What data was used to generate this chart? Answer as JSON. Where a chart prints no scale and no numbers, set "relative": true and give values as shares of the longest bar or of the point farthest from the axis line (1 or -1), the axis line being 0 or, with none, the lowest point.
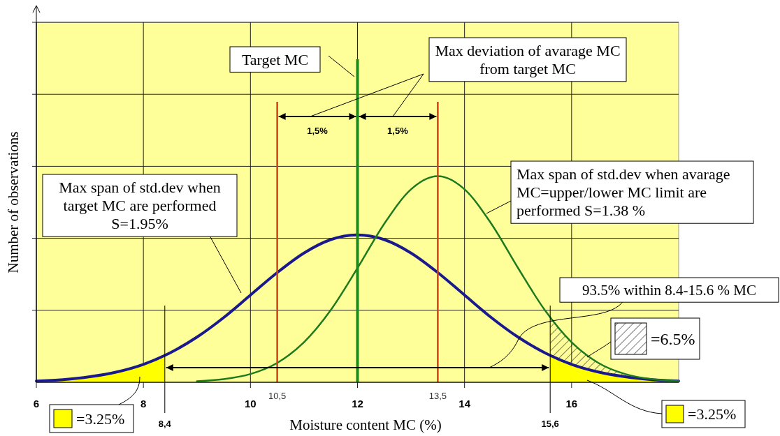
{
  "chart_data": {
    "type": "line",
    "relative": true,
    "xlabel": "Moisture content MC (%)",
    "ylabel": "Number of observations",
    "xlim": [
      6,
      18
    ],
    "xticks": [
      6,
      8,
      10,
      12,
      14,
      16
    ],
    "grid": true,
    "series": [
      {
        "type": "area",
        "color": "#ffff00",
        "x": [
          6,
          6.5,
          7,
          7.5,
          8,
          8.4
        ],
        "values": [
          0.006,
          0.013,
          0.027,
          0.05,
          0.087,
          0.13
        ]
      },
      {
        "type": "area",
        "color": "#ffff00",
        "x": [
          15.6,
          16,
          16.5,
          17,
          17.5,
          18
        ],
        "values": [
          0.13,
          0.087,
          0.05,
          0.027,
          0.013,
          0.006
        ]
      },
      {
        "type": "area",
        "color": "#000000",
        "x": [
          15.6,
          16,
          16.5,
          17,
          17.5,
          18
        ],
        "values": [
          0.314,
          0.194,
          0.094,
          0.04,
          0.015,
          0.006
        ]
      },
      {
        "color": "#1a1a8c",
        "x": [
          6,
          6.5,
          7,
          7.5,
          8,
          8.5,
          9,
          9.5,
          10,
          10.5,
          11,
          11.5,
          12,
          12.5,
          13,
          13.5,
          14,
          14.5,
          15,
          15.5,
          16,
          16.5,
          17,
          17.5,
          18
        ],
        "values": [
          0.006,
          0.013,
          0.027,
          0.05,
          0.087,
          0.143,
          0.219,
          0.314,
          0.423,
          0.532,
          0.627,
          0.692,
          0.715,
          0.692,
          0.627,
          0.532,
          0.423,
          0.314,
          0.219,
          0.143,
          0.087,
          0.05,
          0.027,
          0.013,
          0.006
        ]
      },
      {
        "color": "#1e7a1e",
        "x": [
          9,
          9.5,
          10,
          10.5,
          11,
          11.5,
          12,
          12.5,
          13,
          13.5,
          14,
          14.5,
          15,
          15.5,
          16,
          16.5,
          17,
          17.5,
          18
        ],
        "values": [
          0.005,
          0.015,
          0.04,
          0.094,
          0.194,
          0.35,
          0.554,
          0.769,
          0.936,
          1,
          0.936,
          0.769,
          0.554,
          0.35,
          0.194,
          0.094,
          0.04,
          0.015,
          0.006
        ]
      }
    ],
    "ref_lines": [
      {
        "axis": "x",
        "value": 10.5,
        "label": "10,5",
        "color": "#d0401a"
      },
      {
        "axis": "x",
        "value": 13.5,
        "label": "13,5",
        "color": "#d0401a"
      },
      {
        "axis": "x",
        "value": 12,
        "color": "#1e8a1e"
      },
      {
        "axis": "x",
        "value": 8.4,
        "label": "8,4",
        "color": "#000000"
      },
      {
        "axis": "x",
        "value": 15.6,
        "label": "15,6",
        "color": "#000000"
      }
    ],
    "annotations": [
      "Target MC",
      "Max deviation of avarage MC from target MC",
      "Max span of std.dev when target MC are performed S=1.95%",
      "Max span of std.dev when avarage MC=upper/lower MC limit are performed S=1.38 %",
      "1,5%",
      "1,5%",
      "93.5% within 8.4-15.6 % MC",
      "=6.5%",
      "=3.25%",
      "=3.25%"
    ]
  }
}
